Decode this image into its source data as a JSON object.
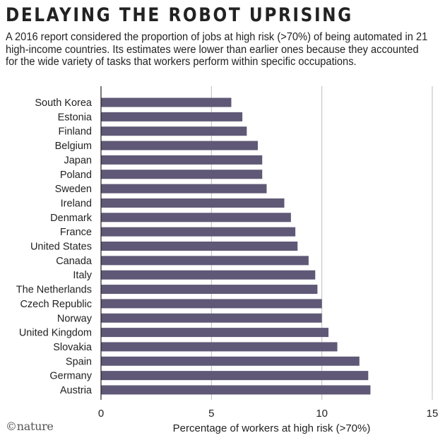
{
  "header": {
    "title": "DELAYING THE ROBOT UPRISING",
    "subtitle": "A 2016 report considered the proportion of jobs at high risk (>70%) of being automated in 21 high-income countries. Its estimates were lower than earlier ones because they accounted for the wide variety of tasks that workers perform within specific occupations."
  },
  "logo": {
    "text": "©nature"
  },
  "colors": {
    "bar": "#5f5876",
    "grid": "#bdbdbd",
    "text": "#222222"
  },
  "chart_data": {
    "type": "bar",
    "orientation": "horizontal",
    "categories": [
      "South Korea",
      "Estonia",
      "Finland",
      "Belgium",
      "Japan",
      "Poland",
      "Sweden",
      "Ireland",
      "Denmark",
      "France",
      "United States",
      "Canada",
      "Italy",
      "The Netherlands",
      "Czech Republic",
      "Norway",
      "United Kingdom",
      "Slovakia",
      "Spain",
      "Germany",
      "Austria"
    ],
    "values": [
      5.9,
      6.4,
      6.6,
      7.1,
      7.3,
      7.3,
      7.5,
      8.3,
      8.6,
      8.8,
      8.9,
      9.4,
      9.7,
      9.8,
      10.0,
      10.0,
      10.3,
      10.7,
      11.7,
      12.1,
      12.2
    ],
    "xlabel": "Percentage of workers at high risk (>70%)",
    "ylabel": "",
    "xlim": [
      0,
      15
    ],
    "xticks": [
      0,
      5,
      10,
      15
    ],
    "grid": "vertical"
  }
}
